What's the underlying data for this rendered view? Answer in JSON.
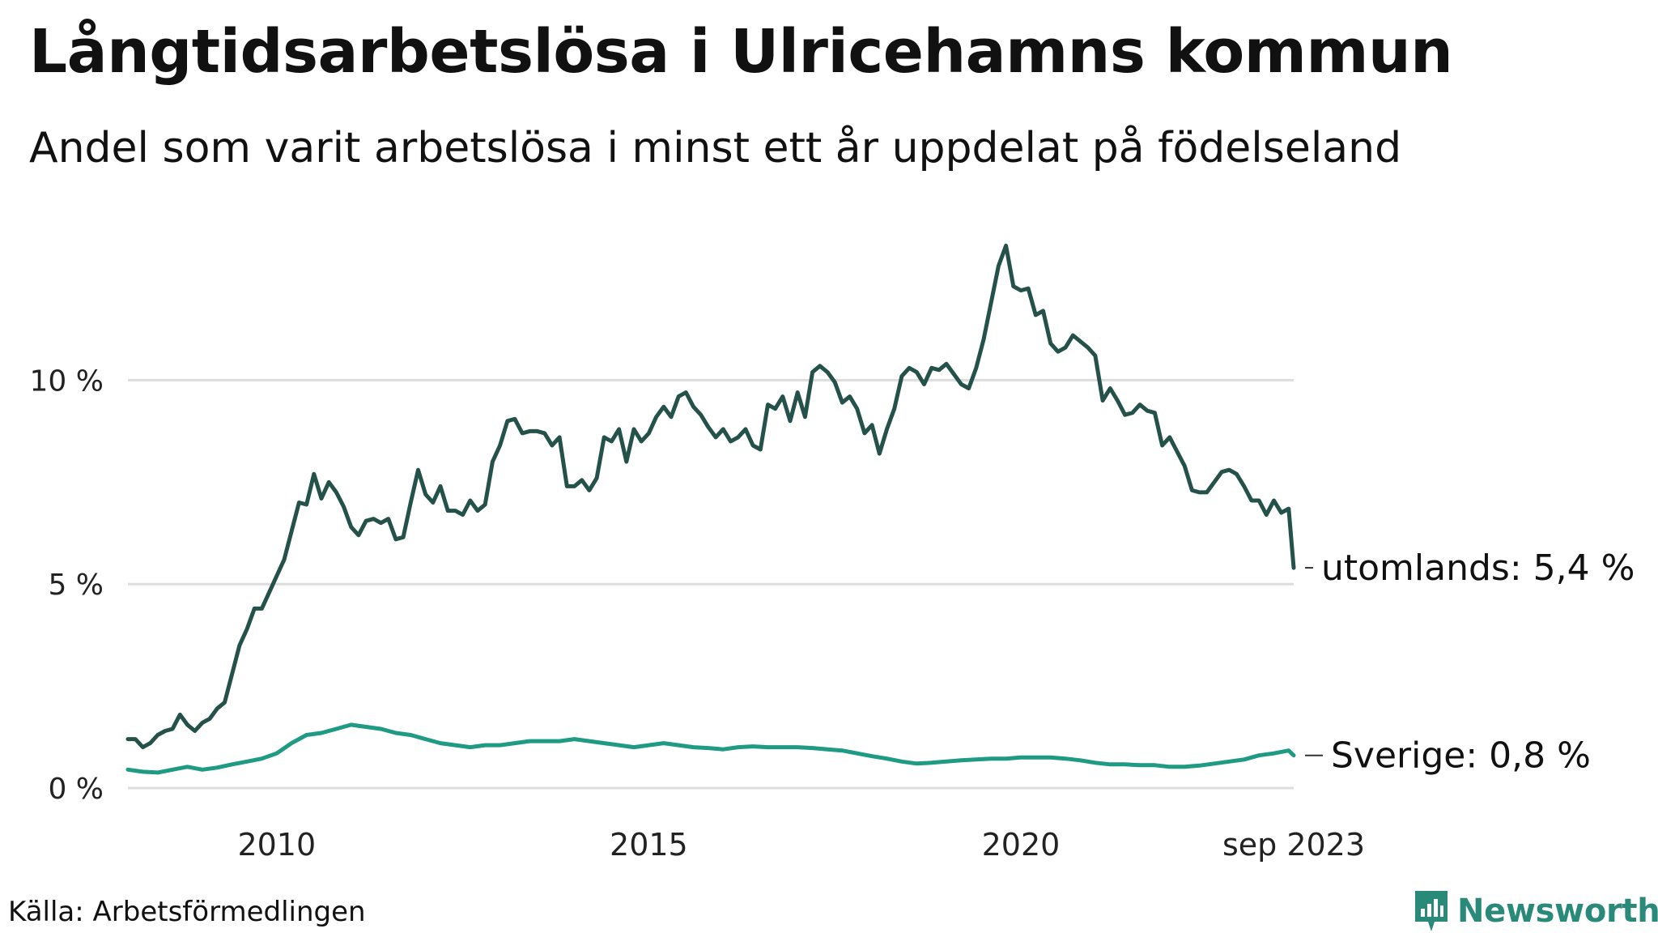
{
  "header": {
    "title": "Långtidsarbetslösa i Ulricehamns kommun",
    "subtitle": "Andel som varit arbetslösa i minst ett år uppdelat på födelseland"
  },
  "footer": {
    "source": "Källa: Arbetsförmedlingen",
    "brand": "Newsworthy"
  },
  "colors": {
    "utomlands": "#24524a",
    "sverige": "#1f9a83",
    "grid": "#dddddd",
    "brand": "#2a8a7a"
  },
  "chart_data": {
    "type": "line",
    "title": "Långtidsarbetslösa i Ulricehamns kommun",
    "xlabel": "",
    "ylabel": "",
    "x_range": [
      2008.0,
      2023.667
    ],
    "ylim": [
      0,
      14
    ],
    "y_ticks": [
      {
        "value": 0,
        "label": "0 %"
      },
      {
        "value": 5,
        "label": "5 %"
      },
      {
        "value": 10,
        "label": "10 %"
      }
    ],
    "x_ticks": [
      {
        "value": 2010,
        "label": "2010"
      },
      {
        "value": 2015,
        "label": "2015"
      },
      {
        "value": 2020,
        "label": "2020"
      },
      {
        "value": 2023.667,
        "label": "sep 2023"
      }
    ],
    "grid": true,
    "series": [
      {
        "name": "utomlands",
        "end_label": "utomlands: 5,4 %",
        "points": [
          [
            2008.0,
            1.2
          ],
          [
            2008.1,
            1.2
          ],
          [
            2008.2,
            1.0
          ],
          [
            2008.3,
            1.1
          ],
          [
            2008.4,
            1.3
          ],
          [
            2008.5,
            1.4
          ],
          [
            2008.6,
            1.45
          ],
          [
            2008.7,
            1.8
          ],
          [
            2008.8,
            1.55
          ],
          [
            2008.9,
            1.4
          ],
          [
            2009.0,
            1.6
          ],
          [
            2009.1,
            1.7
          ],
          [
            2009.2,
            1.95
          ],
          [
            2009.3,
            2.1
          ],
          [
            2009.4,
            2.8
          ],
          [
            2009.5,
            3.5
          ],
          [
            2009.6,
            3.9
          ],
          [
            2009.7,
            4.4
          ],
          [
            2009.8,
            4.4
          ],
          [
            2009.9,
            4.8
          ],
          [
            2010.0,
            5.2
          ],
          [
            2010.1,
            5.6
          ],
          [
            2010.2,
            6.3
          ],
          [
            2010.3,
            7.0
          ],
          [
            2010.4,
            6.95
          ],
          [
            2010.5,
            7.7
          ],
          [
            2010.6,
            7.1
          ],
          [
            2010.7,
            7.5
          ],
          [
            2010.8,
            7.25
          ],
          [
            2010.9,
            6.9
          ],
          [
            2011.0,
            6.4
          ],
          [
            2011.1,
            6.2
          ],
          [
            2011.2,
            6.55
          ],
          [
            2011.3,
            6.6
          ],
          [
            2011.4,
            6.5
          ],
          [
            2011.5,
            6.6
          ],
          [
            2011.6,
            6.1
          ],
          [
            2011.7,
            6.15
          ],
          [
            2011.8,
            7.0
          ],
          [
            2011.9,
            7.8
          ],
          [
            2012.0,
            7.2
          ],
          [
            2012.1,
            7.0
          ],
          [
            2012.2,
            7.4
          ],
          [
            2012.3,
            6.8
          ],
          [
            2012.4,
            6.8
          ],
          [
            2012.5,
            6.7
          ],
          [
            2012.6,
            7.05
          ],
          [
            2012.7,
            6.8
          ],
          [
            2012.8,
            6.95
          ],
          [
            2012.9,
            8.0
          ],
          [
            2013.0,
            8.4
          ],
          [
            2013.1,
            9.0
          ],
          [
            2013.2,
            9.05
          ],
          [
            2013.3,
            8.7
          ],
          [
            2013.4,
            8.75
          ],
          [
            2013.5,
            8.75
          ],
          [
            2013.6,
            8.7
          ],
          [
            2013.7,
            8.4
          ],
          [
            2013.8,
            8.6
          ],
          [
            2013.9,
            7.4
          ],
          [
            2014.0,
            7.4
          ],
          [
            2014.1,
            7.55
          ],
          [
            2014.2,
            7.3
          ],
          [
            2014.3,
            7.6
          ],
          [
            2014.4,
            8.6
          ],
          [
            2014.5,
            8.5
          ],
          [
            2014.6,
            8.8
          ],
          [
            2014.7,
            8.0
          ],
          [
            2014.8,
            8.8
          ],
          [
            2014.9,
            8.5
          ],
          [
            2015.0,
            8.7
          ],
          [
            2015.1,
            9.1
          ],
          [
            2015.2,
            9.35
          ],
          [
            2015.3,
            9.1
          ],
          [
            2015.4,
            9.6
          ],
          [
            2015.5,
            9.7
          ],
          [
            2015.6,
            9.35
          ],
          [
            2015.7,
            9.15
          ],
          [
            2015.8,
            8.85
          ],
          [
            2015.9,
            8.6
          ],
          [
            2016.0,
            8.8
          ],
          [
            2016.1,
            8.5
          ],
          [
            2016.2,
            8.6
          ],
          [
            2016.3,
            8.8
          ],
          [
            2016.4,
            8.4
          ],
          [
            2016.5,
            8.3
          ],
          [
            2016.6,
            9.4
          ],
          [
            2016.7,
            9.3
          ],
          [
            2016.8,
            9.6
          ],
          [
            2016.9,
            9.0
          ],
          [
            2017.0,
            9.7
          ],
          [
            2017.1,
            9.1
          ],
          [
            2017.2,
            10.2
          ],
          [
            2017.3,
            10.35
          ],
          [
            2017.4,
            10.2
          ],
          [
            2017.5,
            9.95
          ],
          [
            2017.6,
            9.45
          ],
          [
            2017.7,
            9.6
          ],
          [
            2017.8,
            9.3
          ],
          [
            2017.9,
            8.7
          ],
          [
            2018.0,
            8.9
          ],
          [
            2018.1,
            8.2
          ],
          [
            2018.2,
            8.8
          ],
          [
            2018.3,
            9.3
          ],
          [
            2018.4,
            10.1
          ],
          [
            2018.5,
            10.3
          ],
          [
            2018.6,
            10.2
          ],
          [
            2018.7,
            9.9
          ],
          [
            2018.8,
            10.3
          ],
          [
            2018.9,
            10.25
          ],
          [
            2019.0,
            10.4
          ],
          [
            2019.1,
            10.15
          ],
          [
            2019.2,
            9.9
          ],
          [
            2019.3,
            9.8
          ],
          [
            2019.4,
            10.3
          ],
          [
            2019.5,
            11.0
          ],
          [
            2019.6,
            11.9
          ],
          [
            2019.7,
            12.8
          ],
          [
            2019.8,
            13.3
          ],
          [
            2019.9,
            12.3
          ],
          [
            2020.0,
            12.2
          ],
          [
            2020.1,
            12.25
          ],
          [
            2020.2,
            11.6
          ],
          [
            2020.3,
            11.7
          ],
          [
            2020.4,
            10.9
          ],
          [
            2020.5,
            10.7
          ],
          [
            2020.6,
            10.8
          ],
          [
            2020.7,
            11.1
          ],
          [
            2020.8,
            10.95
          ],
          [
            2020.9,
            10.8
          ],
          [
            2021.0,
            10.6
          ],
          [
            2021.1,
            9.5
          ],
          [
            2021.2,
            9.8
          ],
          [
            2021.3,
            9.5
          ],
          [
            2021.4,
            9.15
          ],
          [
            2021.5,
            9.2
          ],
          [
            2021.6,
            9.4
          ],
          [
            2021.7,
            9.25
          ],
          [
            2021.8,
            9.2
          ],
          [
            2021.9,
            8.4
          ],
          [
            2022.0,
            8.6
          ],
          [
            2022.1,
            8.25
          ],
          [
            2022.2,
            7.9
          ],
          [
            2022.3,
            7.3
          ],
          [
            2022.4,
            7.25
          ],
          [
            2022.5,
            7.25
          ],
          [
            2022.6,
            7.5
          ],
          [
            2022.7,
            7.75
          ],
          [
            2022.8,
            7.8
          ],
          [
            2022.9,
            7.7
          ],
          [
            2023.0,
            7.4
          ],
          [
            2023.1,
            7.05
          ],
          [
            2023.2,
            7.05
          ],
          [
            2023.3,
            6.7
          ],
          [
            2023.4,
            7.05
          ],
          [
            2023.5,
            6.75
          ],
          [
            2023.6,
            6.85
          ],
          [
            2023.667,
            5.4
          ]
        ]
      },
      {
        "name": "Sverige",
        "end_label": "Sverige: 0,8 %",
        "points": [
          [
            2008.0,
            0.45
          ],
          [
            2008.2,
            0.4
          ],
          [
            2008.4,
            0.38
          ],
          [
            2008.6,
            0.45
          ],
          [
            2008.8,
            0.52
          ],
          [
            2009.0,
            0.45
          ],
          [
            2009.2,
            0.5
          ],
          [
            2009.4,
            0.58
          ],
          [
            2009.6,
            0.65
          ],
          [
            2009.8,
            0.72
          ],
          [
            2010.0,
            0.85
          ],
          [
            2010.2,
            1.1
          ],
          [
            2010.4,
            1.3
          ],
          [
            2010.6,
            1.35
          ],
          [
            2010.8,
            1.45
          ],
          [
            2011.0,
            1.55
          ],
          [
            2011.2,
            1.5
          ],
          [
            2011.4,
            1.45
          ],
          [
            2011.6,
            1.35
          ],
          [
            2011.8,
            1.3
          ],
          [
            2012.0,
            1.2
          ],
          [
            2012.2,
            1.1
          ],
          [
            2012.4,
            1.05
          ],
          [
            2012.6,
            1.0
          ],
          [
            2012.8,
            1.05
          ],
          [
            2013.0,
            1.05
          ],
          [
            2013.2,
            1.1
          ],
          [
            2013.4,
            1.15
          ],
          [
            2013.6,
            1.15
          ],
          [
            2013.8,
            1.15
          ],
          [
            2014.0,
            1.2
          ],
          [
            2014.2,
            1.15
          ],
          [
            2014.4,
            1.1
          ],
          [
            2014.6,
            1.05
          ],
          [
            2014.8,
            1.0
          ],
          [
            2015.0,
            1.05
          ],
          [
            2015.2,
            1.1
          ],
          [
            2015.4,
            1.05
          ],
          [
            2015.6,
            1.0
          ],
          [
            2015.8,
            0.98
          ],
          [
            2016.0,
            0.95
          ],
          [
            2016.2,
            1.0
          ],
          [
            2016.4,
            1.02
          ],
          [
            2016.6,
            1.0
          ],
          [
            2016.8,
            1.0
          ],
          [
            2017.0,
            1.0
          ],
          [
            2017.2,
            0.98
          ],
          [
            2017.4,
            0.95
          ],
          [
            2017.6,
            0.92
          ],
          [
            2017.8,
            0.85
          ],
          [
            2018.0,
            0.78
          ],
          [
            2018.2,
            0.72
          ],
          [
            2018.4,
            0.65
          ],
          [
            2018.6,
            0.6
          ],
          [
            2018.8,
            0.62
          ],
          [
            2019.0,
            0.65
          ],
          [
            2019.2,
            0.68
          ],
          [
            2019.4,
            0.7
          ],
          [
            2019.6,
            0.72
          ],
          [
            2019.8,
            0.72
          ],
          [
            2020.0,
            0.75
          ],
          [
            2020.2,
            0.75
          ],
          [
            2020.4,
            0.75
          ],
          [
            2020.6,
            0.72
          ],
          [
            2020.8,
            0.68
          ],
          [
            2021.0,
            0.62
          ],
          [
            2021.2,
            0.58
          ],
          [
            2021.4,
            0.58
          ],
          [
            2021.6,
            0.56
          ],
          [
            2021.8,
            0.56
          ],
          [
            2022.0,
            0.52
          ],
          [
            2022.2,
            0.52
          ],
          [
            2022.4,
            0.55
          ],
          [
            2022.6,
            0.6
          ],
          [
            2022.8,
            0.65
          ],
          [
            2023.0,
            0.7
          ],
          [
            2023.2,
            0.8
          ],
          [
            2023.4,
            0.85
          ],
          [
            2023.6,
            0.92
          ],
          [
            2023.667,
            0.8
          ]
        ]
      }
    ]
  }
}
